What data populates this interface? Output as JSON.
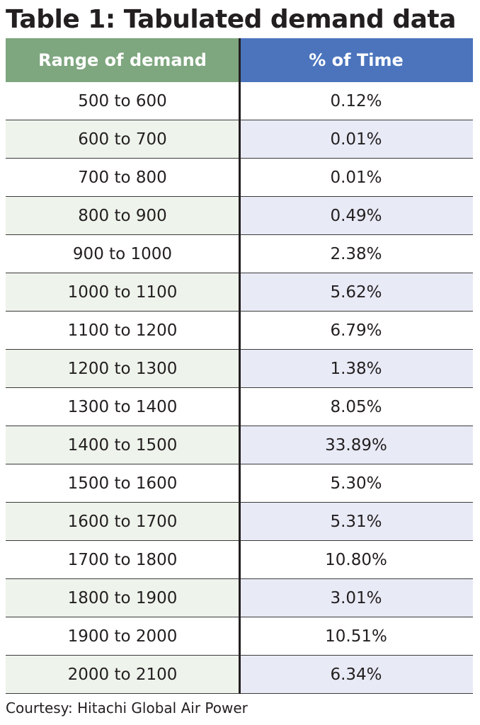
{
  "title": "Table 1: Tabulated demand data",
  "headers": {
    "range": "Range of demand",
    "percent": "% of Time"
  },
  "rows": [
    {
      "range": "500 to 600",
      "percent": "0.12%"
    },
    {
      "range": "600 to 700",
      "percent": "0.01%"
    },
    {
      "range": "700 to 800",
      "percent": "0.01%"
    },
    {
      "range": "800 to 900",
      "percent": "0.49%"
    },
    {
      "range": "900 to 1000",
      "percent": "2.38%"
    },
    {
      "range": "1000 to 1100",
      "percent": "5.62%"
    },
    {
      "range": "1100 to 1200",
      "percent": "6.79%"
    },
    {
      "range": "1200 to 1300",
      "percent": "1.38%"
    },
    {
      "range": "1300 to 1400",
      "percent": "8.05%"
    },
    {
      "range": "1400 to 1500",
      "percent": "33.89%"
    },
    {
      "range": "1500 to 1600",
      "percent": "5.30%"
    },
    {
      "range": "1600 to 1700",
      "percent": "5.31%"
    },
    {
      "range": "1700 to 1800",
      "percent": "10.80%"
    },
    {
      "range": "1800 to 1900",
      "percent": "3.01%"
    },
    {
      "range": "1900 to 2000",
      "percent": "10.51%"
    },
    {
      "range": "2000 to 2100",
      "percent": "6.34%"
    }
  ],
  "credit": "Courtesy: Hitachi Global Air Power",
  "colors": {
    "header_left": "#7ea67f",
    "header_right": "#4b74bd",
    "row_alt_left": "#eef3ec",
    "row_alt_right": "#e8eaf6"
  }
}
